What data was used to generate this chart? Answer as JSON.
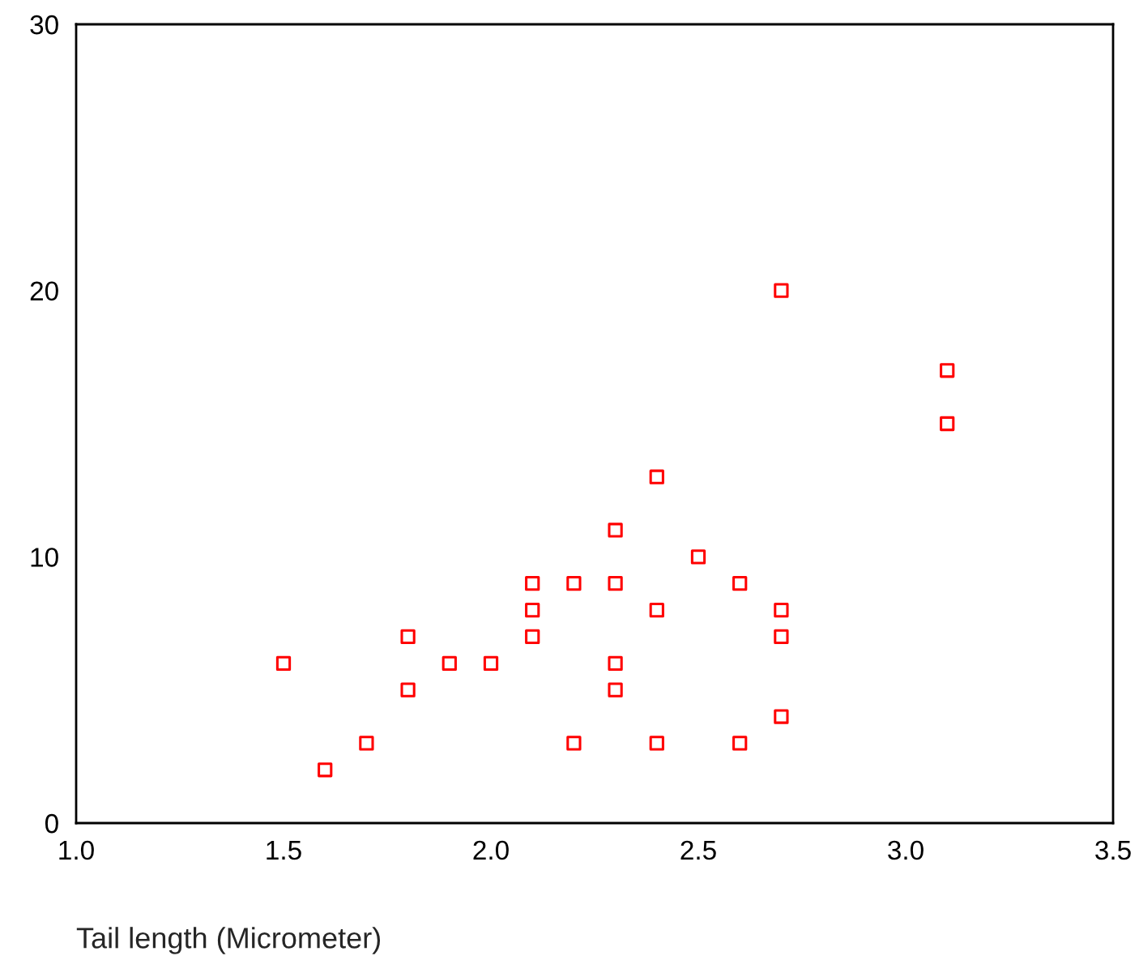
{
  "chart_data": {
    "type": "scatter",
    "xlabel": "Tail length (Micrometer)",
    "x": [
      1.5,
      1.6,
      1.7,
      1.8,
      1.8,
      1.9,
      2.0,
      2.1,
      2.1,
      2.1,
      2.2,
      2.2,
      2.3,
      2.3,
      2.3,
      2.3,
      2.4,
      2.4,
      2.4,
      2.5,
      2.6,
      2.6,
      2.7,
      2.7,
      2.7,
      2.7,
      3.1,
      3.1
    ],
    "values": [
      6,
      2,
      3,
      7,
      5,
      6,
      6,
      9,
      8,
      7,
      9,
      3,
      11,
      9,
      6,
      5,
      13,
      8,
      3,
      10,
      9,
      3,
      20,
      8,
      7,
      4,
      17,
      15
    ],
    "color": "#ff0000",
    "marker": "square",
    "xlim": [
      1.0,
      3.5
    ],
    "xticks": [
      {
        "value": 1,
        "label": "1.0"
      },
      1.5,
      {
        "value": 2,
        "label": "2.0"
      },
      2.5,
      {
        "value": 3,
        "label": "3.0"
      },
      3.5
    ],
    "ylim": [
      0,
      30
    ],
    "yticks": [
      0,
      10,
      20,
      30
    ],
    "grid": false
  }
}
